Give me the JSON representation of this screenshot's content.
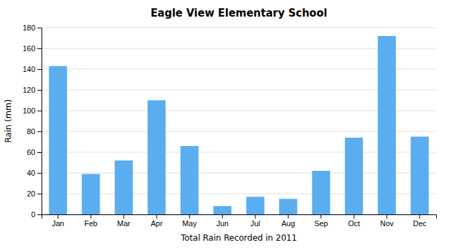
{
  "chart_data": {
    "type": "bar",
    "title": "Eagle View Elementary School",
    "xlabel": "Total Rain Recorded in 2011",
    "ylabel": "Rain (mm)",
    "categories": [
      "Jan",
      "Feb",
      "Mar",
      "Apr",
      "May",
      "Jun",
      "Jul",
      "Aug",
      "Sep",
      "Oct",
      "Nov",
      "Dec"
    ],
    "values": [
      143,
      39,
      52,
      110,
      66,
      8,
      17,
      15,
      42,
      74,
      172,
      75
    ],
    "color": "#5aaef0",
    "ylim": [
      0,
      180
    ],
    "yticks": [
      0,
      20,
      40,
      60,
      80,
      100,
      120,
      140,
      160,
      180
    ],
    "grid": true
  }
}
